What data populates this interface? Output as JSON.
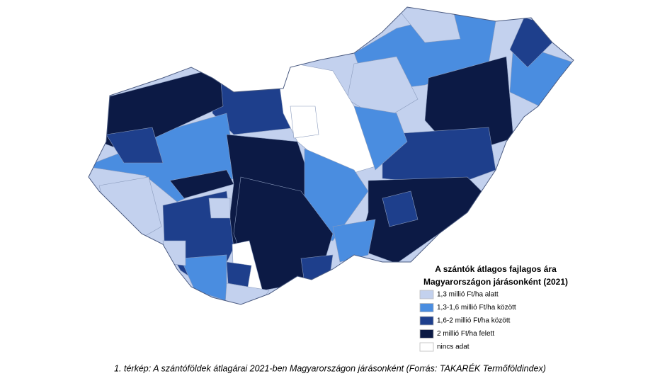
{
  "legend": {
    "title": [
      "A szántók átlagos fajlagos ára",
      "Magyarországon járásonként (2021)"
    ],
    "items": [
      {
        "label": "1,3 millió Ft/ha alatt",
        "color": "#c3d1ee"
      },
      {
        "label": "1,3-1,6 millió Ft/ha között",
        "color": "#4a8de0"
      },
      {
        "label": "1,6-2 millió Ft/ha között",
        "color": "#1e3f8c"
      },
      {
        "label": "2 millió Ft/ha felett",
        "color": "#0c1a45"
      },
      {
        "label": "nincs adat",
        "color": "#ffffff"
      }
    ]
  },
  "caption": "1. térkép: A szántóföldek átlagárai 2021-ben Magyarországon járásonként (Forrás: TAKARÉK Termőföldindex)"
}
